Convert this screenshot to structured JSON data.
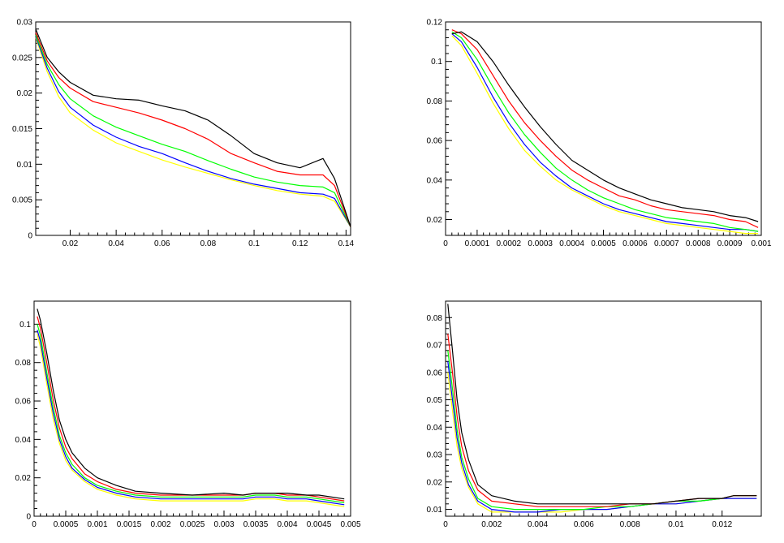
{
  "colors": {
    "black": "#000000",
    "red": "#ff0000",
    "green": "#00ff00",
    "blue": "#0000ff",
    "yellow": "#ffff00"
  },
  "chart_data": [
    {
      "type": "line",
      "title": "",
      "xlabel": "",
      "ylabel": "",
      "xlim": [
        0.005,
        0.142
      ],
      "ylim": [
        0,
        0.03
      ],
      "xticks": [
        0.02,
        0.04,
        0.06,
        0.08,
        0.1,
        0.12,
        0.14
      ],
      "xtick_labels": [
        "0.02",
        "0.04",
        "0.06",
        "0.08",
        "0.1",
        "0.12",
        "0.14"
      ],
      "yticks": [
        0,
        0.005,
        0.01,
        0.015,
        0.02,
        0.025,
        0.03
      ],
      "ytick_labels": [
        "0",
        "0.005",
        "0.01",
        "0.015",
        "0.02",
        "0.025",
        "0.03"
      ],
      "x": [
        0.005,
        0.01,
        0.015,
        0.02,
        0.03,
        0.04,
        0.05,
        0.06,
        0.07,
        0.08,
        0.09,
        0.1,
        0.11,
        0.12,
        0.13,
        0.135,
        0.142
      ],
      "series": [
        {
          "name": "black",
          "color": "#000000",
          "values": [
            0.029,
            0.025,
            0.023,
            0.0215,
            0.0197,
            0.0192,
            0.019,
            0.0182,
            0.0175,
            0.0162,
            0.014,
            0.0115,
            0.0102,
            0.0095,
            0.0108,
            0.008,
            0.0012
          ]
        },
        {
          "name": "red",
          "color": "#ff0000",
          "values": [
            0.0285,
            0.0245,
            0.0222,
            0.0207,
            0.0188,
            0.018,
            0.0172,
            0.0162,
            0.015,
            0.0135,
            0.0115,
            0.0102,
            0.009,
            0.0085,
            0.0085,
            0.007,
            0.0012
          ]
        },
        {
          "name": "green",
          "color": "#00ff00",
          "values": [
            0.0282,
            0.024,
            0.0212,
            0.0192,
            0.0168,
            0.0152,
            0.014,
            0.0128,
            0.0118,
            0.0105,
            0.0093,
            0.0082,
            0.0075,
            0.007,
            0.0068,
            0.006,
            0.0012
          ]
        },
        {
          "name": "blue",
          "color": "#0000ff",
          "values": [
            0.028,
            0.0235,
            0.0202,
            0.018,
            0.0155,
            0.0138,
            0.0125,
            0.0115,
            0.0102,
            0.009,
            0.008,
            0.0072,
            0.0066,
            0.006,
            0.0058,
            0.0052,
            0.0012
          ]
        },
        {
          "name": "yellow",
          "color": "#ffff00",
          "values": [
            0.0278,
            0.023,
            0.0195,
            0.0172,
            0.0148,
            0.013,
            0.0118,
            0.0106,
            0.0096,
            0.0087,
            0.0078,
            0.007,
            0.0063,
            0.0058,
            0.0055,
            0.0048,
            0.0012
          ]
        }
      ]
    },
    {
      "type": "line",
      "title": "",
      "xlabel": "",
      "ylabel": "",
      "xlim": [
        0,
        0.001
      ],
      "ylim": [
        0.012,
        0.12
      ],
      "xticks": [
        0,
        0.0001,
        0.0002,
        0.0003,
        0.0004,
        0.0005,
        0.0006,
        0.0007,
        0.0008,
        0.0009,
        0.001
      ],
      "xtick_labels": [
        "0",
        "0.0001",
        "0.0002",
        "0.0003",
        "0.0004",
        "0.0005",
        "0.0006",
        "0.0007",
        "0.0008",
        "0.0009",
        "0.001"
      ],
      "yticks": [
        0.02,
        0.04,
        0.06,
        0.08,
        0.1,
        0.12
      ],
      "ytick_labels": [
        "0.02",
        "0.04",
        "0.06",
        "0.08",
        "0.1",
        "0.12"
      ],
      "x": [
        2e-05,
        5e-05,
        0.0001,
        0.00015,
        0.0002,
        0.00025,
        0.0003,
        0.00035,
        0.0004,
        0.00045,
        0.0005,
        0.00055,
        0.0006,
        0.00065,
        0.0007,
        0.00075,
        0.0008,
        0.00085,
        0.0009,
        0.00095,
        0.00099
      ],
      "series": [
        {
          "name": "black",
          "color": "#000000",
          "values": [
            0.114,
            0.115,
            0.11,
            0.1,
            0.088,
            0.077,
            0.067,
            0.058,
            0.05,
            0.045,
            0.04,
            0.036,
            0.033,
            0.03,
            0.028,
            0.026,
            0.025,
            0.024,
            0.022,
            0.021,
            0.019
          ]
        },
        {
          "name": "red",
          "color": "#ff0000",
          "values": [
            0.116,
            0.114,
            0.106,
            0.093,
            0.08,
            0.069,
            0.06,
            0.052,
            0.045,
            0.04,
            0.036,
            0.032,
            0.03,
            0.027,
            0.025,
            0.024,
            0.023,
            0.022,
            0.02,
            0.019,
            0.016
          ]
        },
        {
          "name": "green",
          "color": "#00ff00",
          "values": [
            0.115,
            0.112,
            0.101,
            0.087,
            0.074,
            0.063,
            0.054,
            0.046,
            0.04,
            0.035,
            0.031,
            0.028,
            0.025,
            0.023,
            0.021,
            0.02,
            0.019,
            0.018,
            0.016,
            0.015,
            0.014
          ]
        },
        {
          "name": "blue",
          "color": "#0000ff",
          "values": [
            0.114,
            0.11,
            0.097,
            0.082,
            0.069,
            0.058,
            0.049,
            0.042,
            0.036,
            0.032,
            0.028,
            0.025,
            0.023,
            0.021,
            0.019,
            0.018,
            0.017,
            0.016,
            0.015,
            0.015,
            0.014
          ]
        },
        {
          "name": "yellow",
          "color": "#ffff00",
          "values": [
            0.113,
            0.108,
            0.094,
            0.079,
            0.066,
            0.055,
            0.047,
            0.04,
            0.035,
            0.031,
            0.027,
            0.024,
            0.022,
            0.02,
            0.018,
            0.017,
            0.016,
            0.015,
            0.014,
            0.013,
            0.013
          ]
        }
      ]
    },
    {
      "type": "line",
      "title": "",
      "xlabel": "",
      "ylabel": "",
      "xlim": [
        0,
        0.005
      ],
      "ylim": [
        0,
        0.112
      ],
      "xticks": [
        0,
        0.0005,
        0.001,
        0.0015,
        0.002,
        0.0025,
        0.003,
        0.0035,
        0.004,
        0.0045,
        0.005
      ],
      "xtick_labels": [
        "0",
        "0.0005",
        "0.001",
        "0.0015",
        "0.002",
        "0.0025",
        "0.003",
        "0.0035",
        "0.004",
        "0.0045",
        "0.005"
      ],
      "yticks": [
        0,
        0.02,
        0.04,
        0.06,
        0.08,
        0.1
      ],
      "ytick_labels": [
        "0",
        "0.02",
        "0.04",
        "0.06",
        "0.08",
        "0.1"
      ],
      "x": [
        5e-05,
        0.0001,
        0.0002,
        0.0003,
        0.0004,
        0.0005,
        0.0006,
        0.0008,
        0.001,
        0.0013,
        0.0016,
        0.002,
        0.0025,
        0.003,
        0.0033,
        0.0035,
        0.0038,
        0.004,
        0.0043,
        0.0045,
        0.0049
      ],
      "series": [
        {
          "name": "black",
          "color": "#000000",
          "values": [
            0.108,
            0.102,
            0.085,
            0.066,
            0.05,
            0.04,
            0.033,
            0.025,
            0.02,
            0.016,
            0.013,
            0.012,
            0.011,
            0.012,
            0.011,
            0.012,
            0.012,
            0.012,
            0.011,
            0.011,
            0.009
          ]
        },
        {
          "name": "red",
          "color": "#ff0000",
          "values": [
            0.104,
            0.098,
            0.08,
            0.061,
            0.046,
            0.036,
            0.03,
            0.022,
            0.018,
            0.014,
            0.012,
            0.011,
            0.011,
            0.011,
            0.011,
            0.012,
            0.012,
            0.011,
            0.011,
            0.01,
            0.008
          ]
        },
        {
          "name": "green",
          "color": "#00ff00",
          "values": [
            0.1,
            0.094,
            0.075,
            0.057,
            0.042,
            0.033,
            0.027,
            0.02,
            0.016,
            0.013,
            0.011,
            0.01,
            0.01,
            0.01,
            0.01,
            0.011,
            0.011,
            0.01,
            0.01,
            0.009,
            0.007
          ]
        },
        {
          "name": "blue",
          "color": "#0000ff",
          "values": [
            0.097,
            0.091,
            0.072,
            0.054,
            0.04,
            0.031,
            0.025,
            0.019,
            0.015,
            0.012,
            0.01,
            0.009,
            0.009,
            0.009,
            0.009,
            0.01,
            0.01,
            0.009,
            0.009,
            0.008,
            0.006
          ]
        },
        {
          "name": "yellow",
          "color": "#ffff00",
          "values": [
            0.095,
            0.088,
            0.069,
            0.051,
            0.038,
            0.029,
            0.024,
            0.018,
            0.014,
            0.011,
            0.009,
            0.008,
            0.008,
            0.008,
            0.008,
            0.009,
            0.009,
            0.008,
            0.008,
            0.007,
            0.005
          ]
        }
      ]
    },
    {
      "type": "line",
      "title": "",
      "xlabel": "",
      "ylabel": "",
      "xlim": [
        0,
        0.0137
      ],
      "ylim": [
        0.0075,
        0.086
      ],
      "xticks": [
        0,
        0.002,
        0.004,
        0.006,
        0.008,
        0.01,
        0.012
      ],
      "xtick_labels": [
        "0",
        "0.002",
        "0.004",
        "0.006",
        "0.008",
        "0.01",
        "0.012"
      ],
      "yticks": [
        0.01,
        0.02,
        0.03,
        0.04,
        0.05,
        0.06,
        0.07,
        0.08
      ],
      "ytick_labels": [
        "0.01",
        "0.02",
        "0.03",
        "0.04",
        "0.05",
        "0.06",
        "0.07",
        "0.08"
      ],
      "x": [
        0.0001,
        0.0003,
        0.0005,
        0.0007,
        0.001,
        0.0014,
        0.002,
        0.003,
        0.004,
        0.005,
        0.006,
        0.007,
        0.008,
        0.009,
        0.01,
        0.011,
        0.012,
        0.0125,
        0.013,
        0.0135
      ],
      "series": [
        {
          "name": "black",
          "color": "#000000",
          "values": [
            0.085,
            0.068,
            0.05,
            0.038,
            0.028,
            0.019,
            0.015,
            0.013,
            0.012,
            0.012,
            0.012,
            0.012,
            0.012,
            0.012,
            0.013,
            0.014,
            0.014,
            0.015,
            0.015,
            0.015
          ]
        },
        {
          "name": "red",
          "color": "#ff0000",
          "values": [
            0.074,
            0.06,
            0.044,
            0.033,
            0.024,
            0.017,
            0.013,
            0.012,
            0.011,
            0.011,
            0.011,
            0.011,
            0.012,
            0.012,
            0.013,
            0.014,
            0.014,
            0.015,
            0.015,
            0.015
          ]
        },
        {
          "name": "green",
          "color": "#00ff00",
          "values": [
            0.068,
            0.054,
            0.039,
            0.029,
            0.021,
            0.014,
            0.011,
            0.01,
            0.01,
            0.01,
            0.01,
            0.011,
            0.011,
            0.012,
            0.013,
            0.013,
            0.014,
            0.015,
            0.015,
            0.015
          ]
        },
        {
          "name": "blue",
          "color": "#0000ff",
          "values": [
            0.064,
            0.05,
            0.036,
            0.027,
            0.019,
            0.013,
            0.01,
            0.009,
            0.009,
            0.01,
            0.01,
            0.01,
            0.011,
            0.012,
            0.012,
            0.013,
            0.014,
            0.014,
            0.014,
            0.014
          ]
        },
        {
          "name": "yellow",
          "color": "#ffff00",
          "values": [
            0.06,
            0.046,
            0.033,
            0.025,
            0.018,
            0.012,
            0.009,
            0.009,
            0.009,
            0.009,
            0.01,
            0.01,
            0.011,
            0.012,
            0.012,
            0.013,
            0.014,
            0.014,
            0.014,
            0.014
          ]
        }
      ]
    }
  ]
}
